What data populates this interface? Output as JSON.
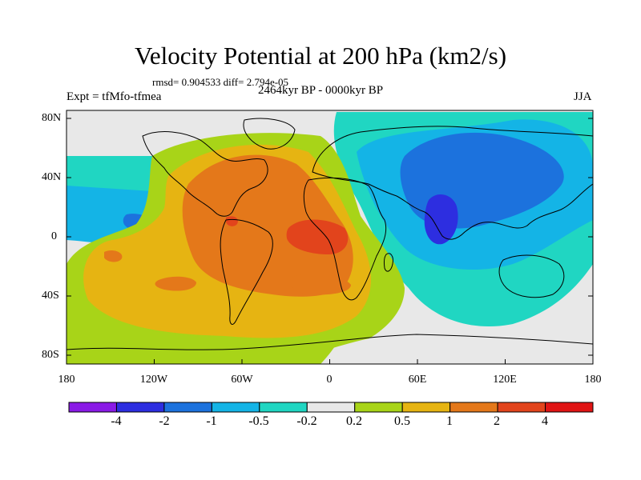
{
  "title": "Velocity Potential at 200 hPa (km2/s)",
  "stats": "rmsd= 0.904533 diff= 2.794e-05",
  "experiment": "Expt = tfMfo-tfmea",
  "period": "2464kyr BP - 0000kyr BP",
  "season": "JJA",
  "lat_labels": [
    "80N",
    "40N",
    "0",
    "40S",
    "80S"
  ],
  "lon_labels": [
    "180",
    "120W",
    "60W",
    "0",
    "60E",
    "120E",
    "180"
  ],
  "colorbar": {
    "levels": [
      "-4",
      "-2",
      "-1",
      "-0.5",
      "-0.2",
      "0.2",
      "0.5",
      "1",
      "2",
      "4"
    ],
    "colors": [
      "#8a1ae6",
      "#2d2ee0",
      "#1c72dd",
      "#14b4e6",
      "#20d6c2",
      "#e8e8e8",
      "#a8d418",
      "#e6b412",
      "#e4781a",
      "#e2441c",
      "#e01414"
    ]
  },
  "map_colors": {
    "neutral": "#e8e8e8",
    "pos_weak": "#a8d418",
    "pos_mid": "#e6b412",
    "pos_strong": "#e4781a",
    "pos_max": "#e2441c",
    "neg_weak": "#20d6c2",
    "neg_mid": "#14b4e6",
    "neg_strong": "#1c72dd",
    "neg_max": "#2d2ee0",
    "coast": "#000000"
  }
}
